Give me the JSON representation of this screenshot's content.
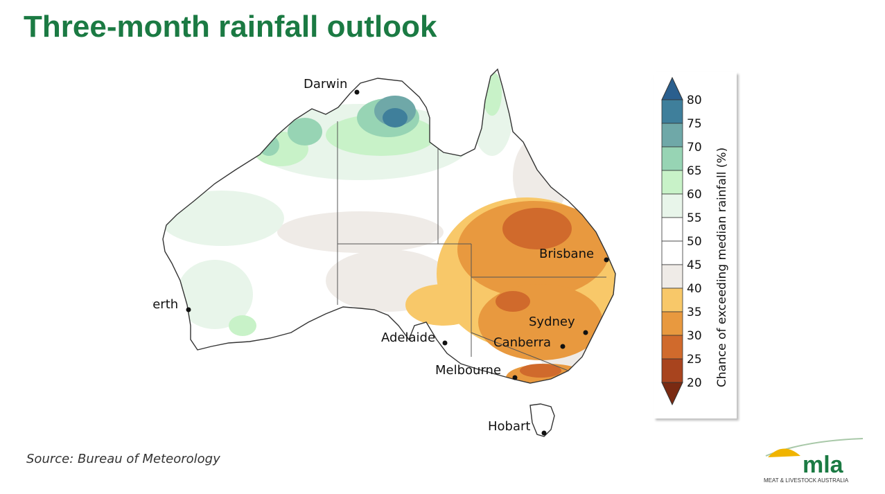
{
  "title": "Three-month rainfall outlook",
  "source": "Source: Bureau of Meteorology",
  "cities": {
    "darwin": "Darwin",
    "perth": "Perth",
    "brisbane": "Brisbane",
    "sydney": "Sydney",
    "canberra": "Canberra",
    "adelaide": "Adelaide",
    "melbourne": "Melbourne",
    "hobart": "Hobart"
  },
  "legend": {
    "title": "Chance of exceeding median rainfall (%)",
    "ticks": [
      "80",
      "75",
      "70",
      "65",
      "60",
      "55",
      "50",
      "45",
      "40",
      "35",
      "30",
      "25",
      "20"
    ],
    "colors": [
      "#2a5f8e",
      "#3f7f9b",
      "#6fa8a8",
      "#97d4b4",
      "#c8f2c8",
      "#e8f5ea",
      "#ffffff",
      "#ffffff",
      "#efebe7",
      "#f8c869",
      "#e8993f",
      "#d06a2c",
      "#a8441e",
      "#7a2a12"
    ]
  },
  "logo": {
    "text": "mla",
    "tagline": "MEAT & LIVESTOCK AUSTRALIA"
  }
}
